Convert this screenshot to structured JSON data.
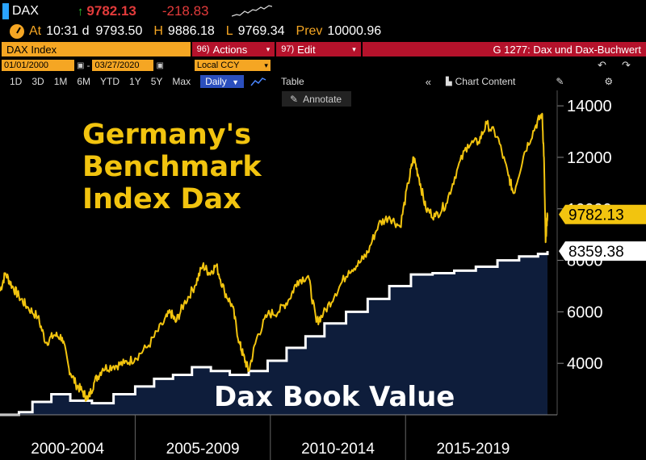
{
  "header": {
    "ticker": "DAX",
    "last_price": "9782.13",
    "change": "-218.83",
    "at_label": "At",
    "time": "10:31 d",
    "at_value": "9793.50",
    "high_label": "H",
    "high": "9886.18",
    "low_label": "L",
    "low": "9769.34",
    "prev_label": "Prev",
    "prev": "10000.96"
  },
  "toolbar": {
    "security": "DAX Index",
    "actions_num": "96)",
    "actions_label": "Actions",
    "edit_num": "97)",
    "edit_label": "Edit",
    "chart_title": "G 1277: Dax und Dax-Buchwert"
  },
  "dates": {
    "start": "01/01/2000",
    "end": "03/27/2020",
    "currency": "Local CCY"
  },
  "periods": [
    "1D",
    "3D",
    "1M",
    "6M",
    "YTD",
    "1Y",
    "5Y",
    "Max"
  ],
  "frequency": "Daily",
  "table_label": "Table",
  "chart_content_label": "Chart Content",
  "annotate_label": "Annotate",
  "colors": {
    "accent": "#f5a623",
    "dax": "#f2c40f",
    "book": "#ffffff",
    "area": "#0e1d3b"
  },
  "chart_data": {
    "type": "line",
    "title": "Germany's Benchmark Index Dax",
    "title_lines": [
      "Germany's",
      "Benchmark",
      "Index Dax"
    ],
    "x_categories": [
      "2000-2004",
      "2005-2009",
      "2010-2014",
      "2015-2019"
    ],
    "xlim": [
      2000.0,
      2020.25
    ],
    "yticks": [
      4000,
      6000,
      8000,
      10000,
      12000,
      14000
    ],
    "ylim": [
      2000,
      14600
    ],
    "grid": false,
    "series": [
      {
        "name": "Dax",
        "color": "#f2c40f",
        "last_value": "9782.13",
        "x": [
          2000.0,
          2000.2,
          2000.45,
          2000.7,
          2001.0,
          2001.4,
          2001.7,
          2002.0,
          2002.3,
          2002.55,
          2002.8,
          2003.05,
          2003.25,
          2003.5,
          2003.8,
          2004.2,
          2004.6,
          2005.0,
          2005.5,
          2006.0,
          2006.3,
          2006.5,
          2006.8,
          2007.2,
          2007.5,
          2007.75,
          2008.0,
          2008.3,
          2008.6,
          2008.85,
          2009.0,
          2009.2,
          2009.5,
          2009.9,
          2010.3,
          2010.7,
          2011.0,
          2011.4,
          2011.7,
          2011.95,
          2012.4,
          2012.9,
          2013.3,
          2013.6,
          2014.0,
          2014.4,
          2014.8,
          2015.1,
          2015.3,
          2015.5,
          2015.75,
          2016.1,
          2016.5,
          2016.9,
          2017.3,
          2017.7,
          2018.0,
          2018.4,
          2018.8,
          2019.0,
          2019.4,
          2019.8,
          2020.05,
          2020.12,
          2020.18,
          2020.22,
          2020.25
        ],
        "y": [
          6800,
          7500,
          7000,
          6600,
          6200,
          5800,
          4800,
          5100,
          5000,
          3800,
          3200,
          2900,
          2600,
          3300,
          3800,
          3900,
          4000,
          4200,
          4700,
          5500,
          6000,
          5600,
          6300,
          7000,
          7800,
          7500,
          7800,
          6800,
          6200,
          4800,
          4300,
          3700,
          5000,
          5900,
          6000,
          6500,
          7200,
          7400,
          5600,
          5900,
          6700,
          7600,
          7900,
          8300,
          9400,
          9700,
          9300,
          11000,
          12000,
          11200,
          10000,
          9700,
          10200,
          11500,
          12500,
          12600,
          13300,
          12800,
          11300,
          10600,
          12200,
          13200,
          13700,
          12000,
          8700,
          9400,
          9782.13
        ]
      },
      {
        "name": "Dax Book Value",
        "color": "#ffffff",
        "last_value": "8359.38",
        "x": [
          2000.0,
          2000.7,
          2001.2,
          2001.9,
          2002.6,
          2003.4,
          2004.2,
          2005.0,
          2005.7,
          2006.4,
          2007.1,
          2007.8,
          2008.5,
          2009.2,
          2009.9,
          2010.6,
          2011.3,
          2012.0,
          2012.8,
          2013.6,
          2014.4,
          2015.2,
          2016.0,
          2016.8,
          2017.6,
          2018.4,
          2019.2,
          2019.9,
          2020.25
        ],
        "y": [
          2000,
          2100,
          2500,
          2800,
          2550,
          2450,
          2800,
          3100,
          3400,
          3550,
          3850,
          3700,
          3550,
          3700,
          4100,
          4600,
          5050,
          5550,
          6000,
          6500,
          7000,
          7450,
          7500,
          7600,
          7750,
          8000,
          8150,
          8250,
          8359.38
        ]
      }
    ],
    "annotations": [
      "Germany's Benchmark Index Dax",
      "Dax Book Value"
    ]
  }
}
